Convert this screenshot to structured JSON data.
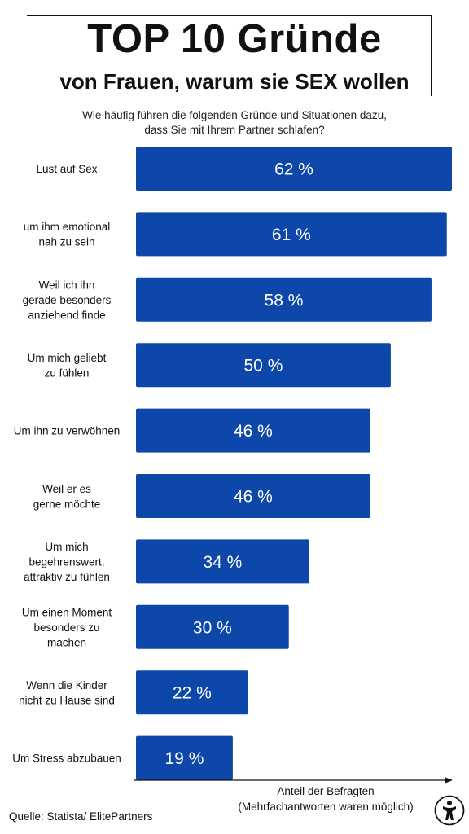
{
  "header": {
    "title": "TOP 10 Gründe",
    "subtitle": "von Frauen, warum sie SEX wollen"
  },
  "question": {
    "line1": "Wie häufig führen die folgenden Gründe und Situationen dazu,",
    "line2": "dass Sie mit Ihrem Partner schlafen?"
  },
  "axis": {
    "line1": "Anteil der Befragten",
    "line2": "(Mehrfachantworten waren möglich)"
  },
  "source": "Quelle: Statista/ ElitePartners",
  "colors": {
    "bar": "#0c47a9",
    "text": "#111111",
    "bar_text": "#ffffff"
  },
  "chart_data": {
    "type": "bar",
    "orientation": "horizontal",
    "categories": [
      [
        "Lust auf Sex"
      ],
      [
        "um ihm emotional",
        "nah zu sein"
      ],
      [
        "Weil ich ihn",
        "gerade besonders",
        "anziehend finde"
      ],
      [
        "Um mich geliebt",
        "zu fühlen"
      ],
      [
        "Um ihn zu verwöhnen"
      ],
      [
        "Weil er es",
        "gerne möchte"
      ],
      [
        "Um mich",
        "begehrenswert,",
        "attraktiv zu fühlen"
      ],
      [
        "Um einen Moment",
        "besonders zu",
        "machen"
      ],
      [
        "Wenn die Kinder",
        "nicht zu Hause sind"
      ],
      [
        "Um Stress abzubauen"
      ]
    ],
    "values": [
      62,
      61,
      58,
      50,
      46,
      46,
      34,
      30,
      22,
      19
    ],
    "value_labels": [
      "62 %",
      "61 %",
      "58 %",
      "50 %",
      "46 %",
      "46 %",
      "34 %",
      "30 %",
      "22 %",
      "19 %"
    ],
    "xlabel": "Anteil der Befragten (Mehrfachantworten waren möglich)",
    "xlim": [
      0,
      62
    ],
    "grid": false
  }
}
